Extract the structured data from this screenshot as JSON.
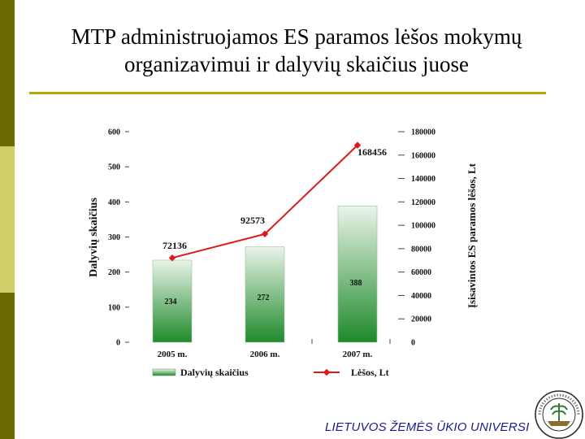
{
  "slide": {
    "title_line1": "MTP administruojamos ES paramos lėšos mokymų",
    "title_line2": "organizavimui ir dalyvių skaičius juose",
    "footer": "LIETUVOS ŽEMĖS ŪKIO UNIVERSI",
    "colors": {
      "sidebar_dark": "#6b6b00",
      "sidebar_light": "#cfcf6a",
      "rule": "#b3a900",
      "bar_top": "#e9f4e9",
      "bar_bottom": "#1f8a2a",
      "line": "#e01818"
    },
    "logo_icon": "university-seal-icon"
  },
  "chart_data": {
    "type": "bar",
    "categories": [
      "2005 m.",
      "2006 m.",
      "2007 m."
    ],
    "bar_series": {
      "name": "Dalyvių skaičius",
      "values": [
        234,
        272,
        388
      ]
    },
    "line_series": {
      "name": "Lėšos, Lt",
      "values": [
        72136,
        92573,
        168456
      ]
    },
    "ylabel_left": "Dalyvių skaičius",
    "ylabel_right": "Įsisavintos ES paramos lėšos, Lt",
    "ylim_left": [
      0,
      600
    ],
    "ylim_right": [
      0,
      180000
    ],
    "left_ticks": [
      "0",
      "100",
      "200",
      "300",
      "400",
      "500",
      "600"
    ],
    "right_ticks": [
      "0",
      "20000",
      "40000",
      "60000",
      "80000",
      "100000",
      "120000",
      "140000",
      "160000",
      "180000"
    ],
    "bar_labels": [
      "234",
      "272",
      "388"
    ],
    "line_labels": [
      "72136",
      "92573",
      "168456"
    ],
    "legend_placement": "bottom",
    "grid": false
  }
}
